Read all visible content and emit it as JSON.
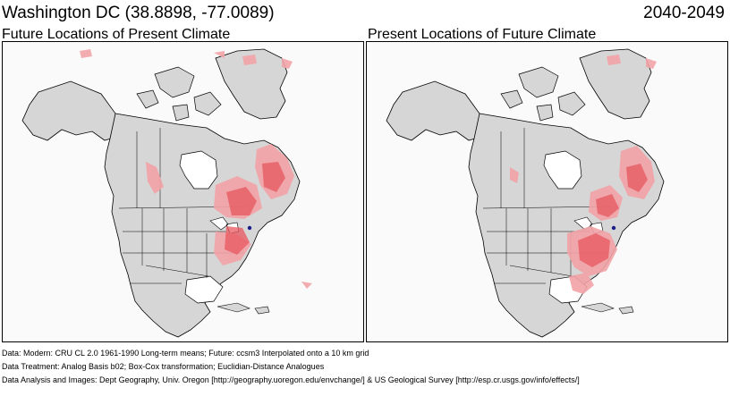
{
  "header": {
    "location": "Washington DC  (38.8898, -77.0089)",
    "period": "2040-2049"
  },
  "panels": [
    {
      "title": "Future Locations of Present Climate"
    },
    {
      "title": "Present Locations of Future Climate"
    }
  ],
  "colors": {
    "land": "#d6d6d6",
    "water": "#ffffff",
    "borders": "#000000",
    "analog_light": "#f2a3a7",
    "analog_strong": "#e8575f"
  },
  "notes": {
    "line1": "Data:  Modern: CRU CL 2.0 1961-1990 Long-term means; Future: ccsm3 Interpolated onto a 10 km grid",
    "line2": "Data Treatment:  Analog Basis b02; Box-Cox transformation; Euclidian-Distance Analogues",
    "line3": "Data Analysis and Images:  Dept Geography, Univ. Oregon [http://geography.uoregon.edu/envchange/] & US Geological Survey [http://esp.cr.usgs.gov/info/effects/]"
  }
}
